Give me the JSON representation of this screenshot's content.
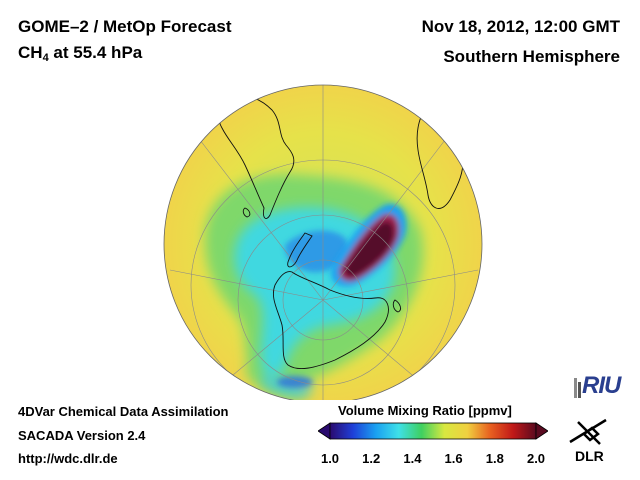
{
  "header": {
    "title_line1": "GOME–2 / MetOp Forecast",
    "species_main": "CH",
    "species_sub": "4",
    "species_rest": " at 55.4 hPa",
    "date": "Nov 18, 2012, 12:00 GMT",
    "region": "Southern Hemisphere"
  },
  "footer": {
    "line1": "4DVar Chemical Data Assimilation",
    "line2": "SACADA Version 2.4",
    "line3": "http://wdc.dlr.de"
  },
  "colorbar": {
    "label": "Volume Mixing Ratio [ppmv]",
    "ticks": [
      "1.0",
      "1.2",
      "1.4",
      "1.6",
      "1.8",
      "2.0"
    ],
    "min": 1.0,
    "max": 2.0,
    "colors": [
      "#2a0a6e",
      "#1f3fd8",
      "#1aa0f0",
      "#3fe0e8",
      "#3fd060",
      "#d8e840",
      "#f0d040",
      "#e86020",
      "#c01818",
      "#5a0a20"
    ]
  },
  "map": {
    "projection": "orthographic-south-polar",
    "background_level": "yellow",
    "low_values_region": "cyan-green band around Antarctica",
    "high_values_region": "dark maroon anomaly east of Antarctic Peninsula"
  },
  "logos": {
    "riu": "RIU",
    "dlr": "DLR"
  }
}
